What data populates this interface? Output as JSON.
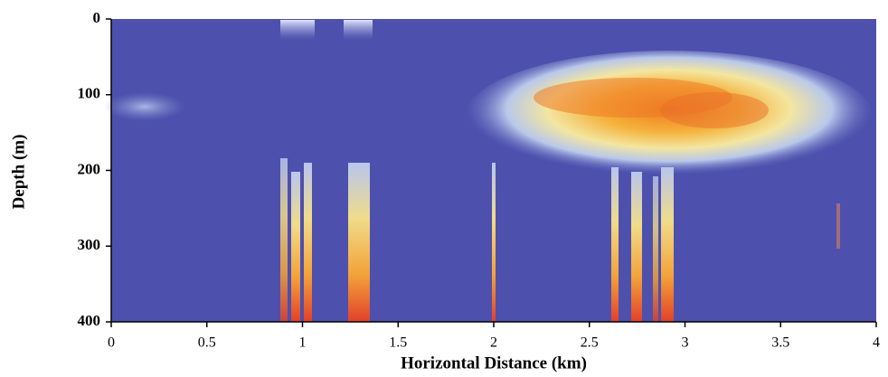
{
  "chart_data": {
    "type": "heatmap",
    "xlabel": "Horizontal Distance (km)",
    "ylabel": "Depth (m)",
    "xlim": [
      0,
      4
    ],
    "xticks": [
      0,
      0.5,
      1,
      1.5,
      2,
      2.5,
      3,
      3.5,
      4
    ],
    "ylim": [
      400,
      0
    ],
    "yticks": [
      0,
      100,
      200,
      300,
      400
    ],
    "background_color": "#4e50ad"
  }
}
